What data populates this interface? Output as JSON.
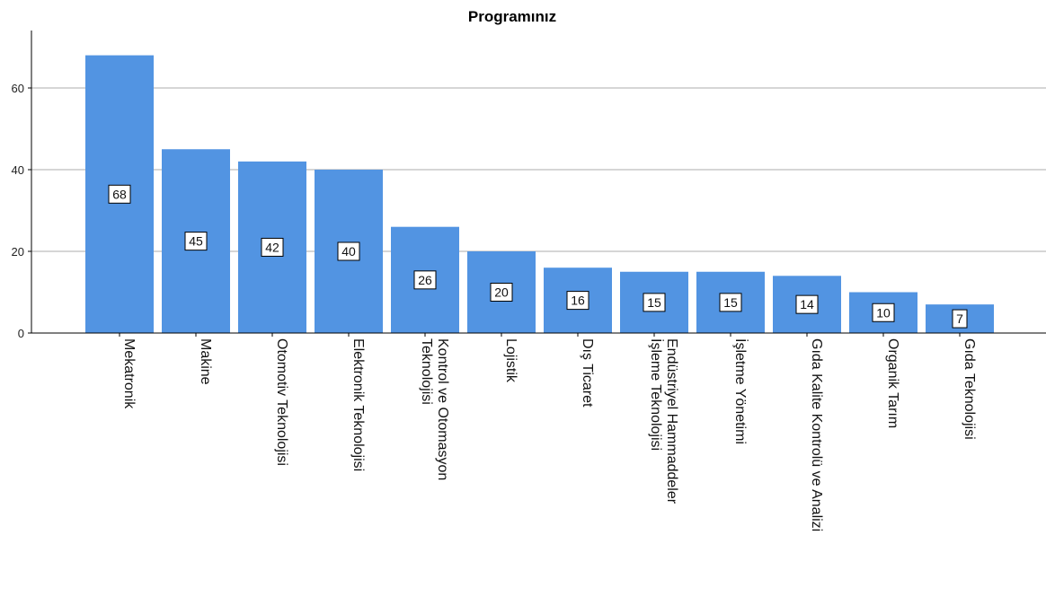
{
  "chart_data": {
    "type": "bar",
    "title": "Programınız",
    "xlabel": "",
    "ylabel": "",
    "categories": [
      "Mekatronik",
      "Makine",
      "Otomotiv Teknolojisi",
      "Elektronik Teknolojisi",
      "Kontrol ve Otomasyon Teknolojisi",
      "Lojistik",
      "Dış Ticaret",
      "Endüstriyel Hammaddeler İşleme Teknolojisi",
      "İşletme Yönetimi",
      "Gıda Kalite Kontrolü ve Analizi",
      "Organik Tarım",
      "Gıda Teknolojisi"
    ],
    "category_lines": [
      [
        "Mekatronik"
      ],
      [
        "Makine"
      ],
      [
        "Otomotiv Teknolojisi"
      ],
      [
        "Elektronik Teknolojisi"
      ],
      [
        "Kontrol ve Otomasyon",
        "Teknolojisi"
      ],
      [
        "Lojistik"
      ],
      [
        "Dış Ticaret"
      ],
      [
        "Endüstriyel Hammaddeler",
        "İşleme Teknolojisi"
      ],
      [
        "İşletme Yönetimi"
      ],
      [
        "Gıda Kalite Kontrolü ve Analizi"
      ],
      [
        "Organik Tarım"
      ],
      [
        "Gıda Teknolojisi"
      ]
    ],
    "values": [
      68,
      45,
      42,
      40,
      26,
      20,
      16,
      15,
      15,
      14,
      10,
      7
    ],
    "ylim": [
      0,
      70
    ],
    "yticks": [
      0,
      20,
      40,
      60
    ],
    "grid": true,
    "data_labels": true,
    "legend": "none",
    "colors": {
      "bar": "#5294E2",
      "grid": "#C8C8C8",
      "axis": "#000000",
      "label_box": "#FFFFFF"
    }
  }
}
